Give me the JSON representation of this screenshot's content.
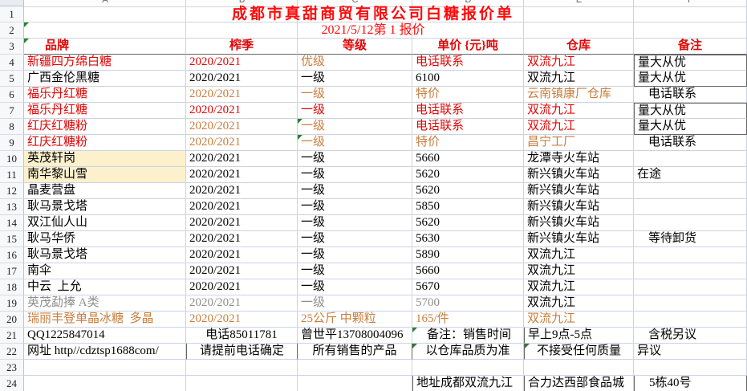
{
  "sheet": {
    "app": "spreadsheet-price-quote",
    "title": "成都市真甜商贸有限公司白糖报价单",
    "subtitle": "2021/5/12第 1 报价",
    "column_letters": [
      "A",
      "B",
      "C",
      "D",
      "E",
      "F"
    ],
    "colors": {
      "title_red": "#ff0b0b",
      "red": "#e00606",
      "orange": "#c97e3d",
      "gray": "#8f8f8f",
      "cream_bg": "#fdf1cd",
      "gridline": "#ccd4e0",
      "triangle_green": "#2e7d32"
    },
    "rows": [
      {
        "n": "1",
        "cells": [
          {},
          {},
          {},
          {},
          {},
          {}
        ]
      },
      {
        "n": "2",
        "cells": [
          {
            "tri": true
          },
          {},
          {},
          {},
          {},
          {}
        ]
      },
      {
        "n": "3",
        "cells": [
          {
            "t": "品牌",
            "c": "red",
            "ind2": true,
            "tri": true
          },
          {
            "t": "榨季",
            "c": "red",
            "al": "c"
          },
          {
            "t": "等级",
            "c": "red",
            "al": "c"
          },
          {
            "t": "单价 {元}吨",
            "c": "red",
            "al": "c"
          },
          {
            "t": "仓库",
            "c": "red",
            "al": "c"
          },
          {
            "t": "备注",
            "c": "red",
            "al": "c"
          }
        ]
      },
      {
        "n": "4",
        "cells": [
          {
            "t": "新疆四方绵白糖",
            "c": "red"
          },
          {
            "t": "2020/2021",
            "c": "red"
          },
          {
            "t": "优级",
            "c": "orange"
          },
          {
            "t": "电话联系",
            "c": "red"
          },
          {
            "t": "双流九江",
            "c": "red"
          },
          {
            "t": "量大从优"
          }
        ]
      },
      {
        "n": "5",
        "cells": [
          {
            "t": "广西金伦黑糖"
          },
          {
            "t": "2020/2021"
          },
          {
            "t": "一级"
          },
          {
            "t": "6100"
          },
          {
            "t": "双流九江"
          },
          {
            "t": "量大从优"
          }
        ]
      },
      {
        "n": "6",
        "cells": [
          {
            "t": "福乐丹红糖",
            "c": "red"
          },
          {
            "t": "2020/2021",
            "c": "orange"
          },
          {
            "t": "一级",
            "c": "orange"
          },
          {
            "t": "特价",
            "c": "orange"
          },
          {
            "t": "云南镇康厂仓库",
            "c": "orange"
          },
          {
            "t": "电话联系",
            "ind": true
          }
        ]
      },
      {
        "n": "7",
        "cells": [
          {
            "t": "福乐丹红糖",
            "c": "red"
          },
          {
            "t": "2020/2021",
            "c": "red"
          },
          {
            "t": "一级",
            "c": "red"
          },
          {
            "t": "电话联系",
            "c": "red"
          },
          {
            "t": "双流九江",
            "c": "red"
          },
          {
            "t": "量大从优"
          }
        ]
      },
      {
        "n": "8",
        "cells": [
          {
            "t": "红庆红糖粉",
            "c": "red"
          },
          {
            "t": "2020/2021",
            "c": "orange"
          },
          {
            "t": "一级",
            "c": "orange",
            "tri": true
          },
          {
            "t": "电话联系",
            "c": "red"
          },
          {
            "t": "双流九江",
            "c": "red"
          },
          {
            "t": "量大从优"
          }
        ]
      },
      {
        "n": "9",
        "cells": [
          {
            "t": "红庆红糖粉",
            "c": "red"
          },
          {
            "t": "2020/2021",
            "c": "orange"
          },
          {
            "t": "一级",
            "c": "orange",
            "tri": true
          },
          {
            "t": "特价",
            "c": "orange"
          },
          {
            "t": "昌宁工厂",
            "c": "orange"
          },
          {
            "t": "电话联系",
            "ind": true
          }
        ]
      },
      {
        "n": "10",
        "cells": [
          {
            "t": "英茂轩岗",
            "bg": "cream"
          },
          {
            "t": "2020/2021"
          },
          {
            "t": "一级"
          },
          {
            "t": "5660"
          },
          {
            "t": "龙潭寺火车站"
          },
          {}
        ]
      },
      {
        "n": "11",
        "cells": [
          {
            "t": "南华黎山雪",
            "bg": "cream"
          },
          {
            "t": "2020/2021"
          },
          {
            "t": "一级"
          },
          {
            "t": "5620"
          },
          {
            "t": "新兴镇火车站"
          },
          {
            "t": "在途"
          }
        ]
      },
      {
        "n": "12",
        "cells": [
          {
            "t": "晶麦营盘"
          },
          {
            "t": "2020/2021"
          },
          {
            "t": "一级"
          },
          {
            "t": "5620"
          },
          {
            "t": "新兴镇火车站"
          },
          {}
        ]
      },
      {
        "n": "13",
        "cells": [
          {
            "t": "耿马景戈塔"
          },
          {
            "t": "2020/2021"
          },
          {
            "t": "一级"
          },
          {
            "t": "5850"
          },
          {
            "t": "新兴镇火车站"
          },
          {}
        ]
      },
      {
        "n": "14",
        "cells": [
          {
            "t": "双江仙人山"
          },
          {
            "t": "2020/2021"
          },
          {
            "t": "一级"
          },
          {
            "t": "5620"
          },
          {
            "t": "新兴镇火车站"
          },
          {}
        ]
      },
      {
        "n": "15",
        "cells": [
          {
            "t": "耿马华侨"
          },
          {
            "t": "2020/2021"
          },
          {
            "t": "一级"
          },
          {
            "t": "5630"
          },
          {
            "t": "新兴镇火车站"
          },
          {
            "t": "等待卸货",
            "ind": true
          }
        ]
      },
      {
        "n": "16",
        "cells": [
          {
            "t": "耿马景戈塔"
          },
          {
            "t": "2020/2021"
          },
          {
            "t": "一级"
          },
          {
            "t": "5890"
          },
          {
            "t": "双流九江"
          },
          {}
        ]
      },
      {
        "n": "17",
        "cells": [
          {
            "t": "南伞"
          },
          {
            "t": "2020/2021"
          },
          {
            "t": "一级"
          },
          {
            "t": "5660"
          },
          {
            "t": "双流九江"
          },
          {}
        ]
      },
      {
        "n": "18",
        "cells": [
          {
            "t": "中云  上允"
          },
          {
            "t": "2020/2021"
          },
          {
            "t": "一级"
          },
          {
            "t": "5670"
          },
          {
            "t": "双流九江"
          },
          {}
        ]
      },
      {
        "n": "19",
        "cells": [
          {
            "t": "英茂勐捧 A类",
            "c": "gray"
          },
          {
            "t": "2020/2021",
            "c": "gray"
          },
          {
            "t": "一级",
            "c": "gray"
          },
          {
            "t": "5700",
            "c": "gray"
          },
          {
            "t": "双流九江"
          },
          {}
        ]
      },
      {
        "n": "20",
        "cells": [
          {
            "t": "瑞丽丰登单晶冰糖  多晶",
            "c": "orange"
          },
          {
            "t": "2020/2021",
            "c": "orange"
          },
          {
            "t": "25公斤 中颗粒",
            "c": "orange"
          },
          {
            "t": "165/件",
            "c": "orange"
          },
          {
            "t": "双流九江",
            "c": "orange"
          },
          {}
        ]
      },
      {
        "n": "21",
        "cells": [
          {
            "t": "QQ1225847014"
          },
          {
            "t": "电话85011781",
            "al": "c"
          },
          {
            "t": "曾世平13708004096"
          },
          {
            "t": "备注：销售时间",
            "tri": true,
            "ind": true
          },
          {
            "t": "早上9点-5点"
          },
          {
            "t": "含税另议",
            "ind": true
          }
        ]
      },
      {
        "n": "22",
        "cells": [
          {
            "t": "网址 http//cdztsp1688com/"
          },
          {
            "t": "请提前电话确定",
            "al": "c"
          },
          {
            "t": "所有销售的产品",
            "al": "c"
          },
          {
            "t": "以仓库品质为准",
            "al": "c",
            "tri": true
          },
          {
            "t": "不接受任何质量",
            "al": "c",
            "tri": true
          },
          {
            "t": "异议"
          }
        ]
      },
      {
        "n": "23",
        "cells": [
          {},
          {},
          {},
          {},
          {},
          {}
        ]
      },
      {
        "n": "24",
        "cells": [
          {},
          {},
          {},
          {
            "t": "地址成都双流九江"
          },
          {
            "t": "合力达西部食品城"
          },
          {
            "t": "5栋40号",
            "ind": true
          }
        ]
      }
    ]
  }
}
